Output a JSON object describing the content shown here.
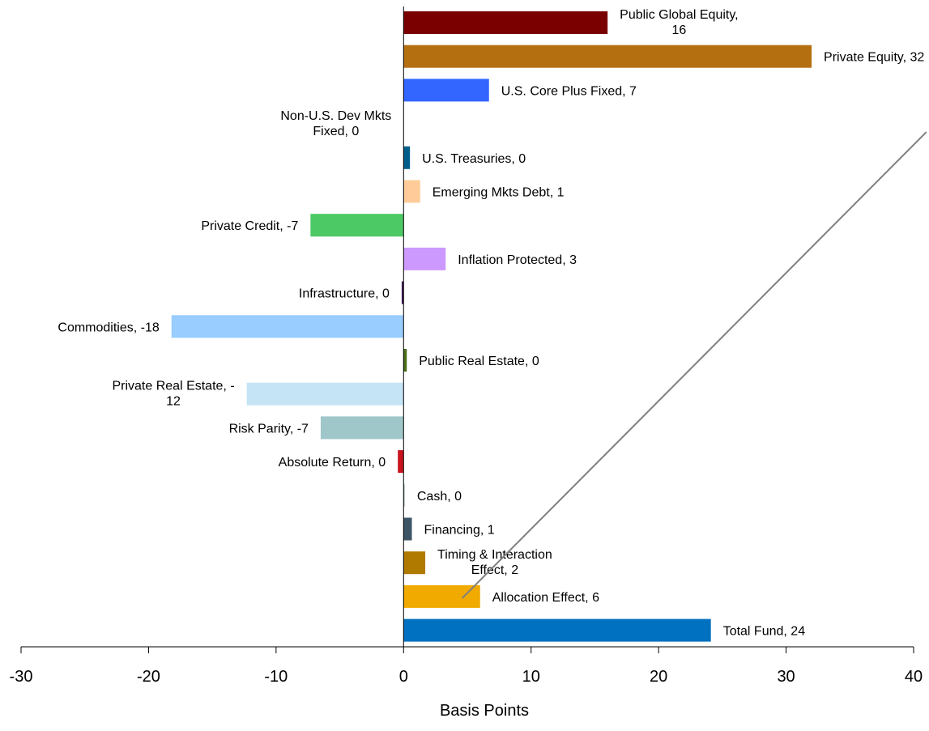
{
  "chart_data": {
    "type": "bar",
    "orientation": "horizontal",
    "xlabel": "Basis Points",
    "xlim": [
      -30,
      40
    ],
    "x_ticks": [
      "-30",
      "-20",
      "-10",
      "0",
      "10",
      "20",
      "30",
      "40"
    ],
    "categories": [
      {
        "label": "Public Global Equity,",
        "label2": "16",
        "value": 16,
        "color": "#7a0000",
        "side": "right"
      },
      {
        "label": "Private Equity, 32",
        "value": 32,
        "color": "#b46f10",
        "side": "right"
      },
      {
        "label": "U.S. Core Plus Fixed, 7",
        "value": 6.7,
        "color": "#3366ff",
        "side": "right"
      },
      {
        "label": "Non-U.S. Dev Mkts",
        "label2": "Fixed, 0",
        "value": 0,
        "color": "#6a8fb0",
        "side": "left"
      },
      {
        "label": "U.S. Treasuries, 0",
        "value": 0.5,
        "color": "#005f8a",
        "side": "right"
      },
      {
        "label": "Emerging Mkts Debt, 1",
        "value": 1.3,
        "color": "#ffcc99",
        "side": "right"
      },
      {
        "label": "Private Credit, -7",
        "value": -7.3,
        "color": "#4cc864",
        "side": "left"
      },
      {
        "label": "Inflation Protected, 3",
        "value": 3.3,
        "color": "#cc99ff",
        "side": "right"
      },
      {
        "label": "Infrastructure, 0",
        "value": -0.15,
        "color": "#3a1a55",
        "side": "left"
      },
      {
        "label": "Commodities, -18",
        "value": -18.2,
        "color": "#99ccff",
        "side": "left"
      },
      {
        "label": "Public Real Estate, 0",
        "value": 0.25,
        "color": "#4a6e1a",
        "side": "right"
      },
      {
        "label": "Private Real Estate, -",
        "label2": "12",
        "value": -12.3,
        "color": "#c5e4f5",
        "side": "left"
      },
      {
        "label": "Risk Parity, -7",
        "value": -6.5,
        "color": "#9fc6c9",
        "side": "left"
      },
      {
        "label": "Absolute Return, 0",
        "value": -0.45,
        "color": "#c8141e",
        "side": "left"
      },
      {
        "label": "Cash, 0",
        "value": 0.1,
        "color": "#b8c8c8",
        "side": "right"
      },
      {
        "label": "Financing, 1",
        "value": 0.65,
        "color": "#3e5566",
        "side": "right"
      },
      {
        "label": "Timing & Interaction",
        "label2": "Effect, 2",
        "value": 1.7,
        "color": "#b07a00",
        "side": "right"
      },
      {
        "label": "Allocation Effect, 6",
        "value": 6,
        "color": "#f0aa00",
        "side": "right"
      },
      {
        "label": "Total Fund, 24",
        "value": 24.1,
        "color": "#0070c0",
        "side": "right"
      }
    ],
    "annotations": [
      {
        "type": "line",
        "from": [
          4.6,
          "Allocation Effect, 6"
        ],
        "to": [
          41,
          "Non-U.S. Dev Mkts"
        ],
        "color": "#808080"
      }
    ],
    "grid": false,
    "legend": "none"
  }
}
